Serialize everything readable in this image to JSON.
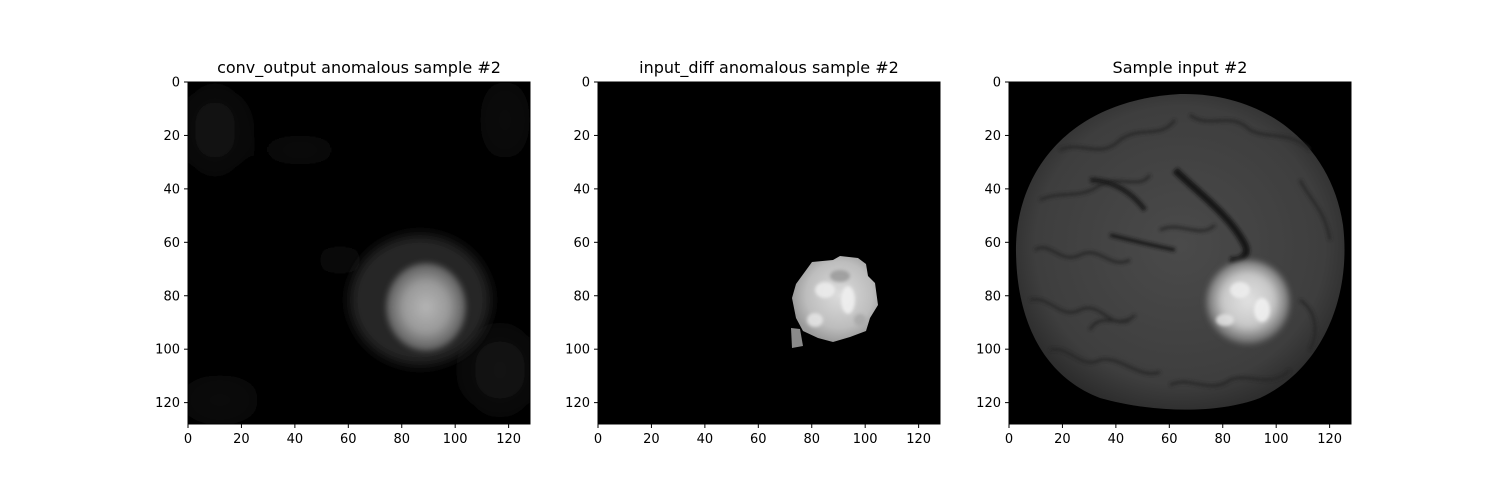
{
  "chart_data": [
    {
      "type": "heatmap",
      "title": "conv_output anomalous sample #2",
      "colormap": "gray",
      "xlim": [
        0,
        128
      ],
      "ylim": [
        128,
        0
      ],
      "xticks": [
        0,
        20,
        40,
        60,
        80,
        100,
        120
      ],
      "yticks": [
        0,
        20,
        40,
        60,
        80,
        100,
        120
      ],
      "content": "smooth bright blob centered near (x 88, y 85) on a dark background"
    },
    {
      "type": "heatmap",
      "title": "input_diff anomalous sample #2",
      "colormap": "gray",
      "xlim": [
        0,
        128
      ],
      "ylim": [
        128,
        0
      ],
      "xticks": [
        0,
        20,
        40,
        60,
        80,
        100,
        120
      ],
      "yticks": [
        0,
        20,
        40,
        60,
        80,
        100,
        120
      ],
      "content": "pixelated bright region centered near (x 87, y 82) with a small fragment near (x 76, y 98) on a black background"
    },
    {
      "type": "heatmap",
      "title": "Sample input #2",
      "colormap": "gray",
      "xlim": [
        0,
        128
      ],
      "ylim": [
        128,
        0
      ],
      "xticks": [
        0,
        20,
        40,
        60,
        80,
        100,
        120
      ],
      "yticks": [
        0,
        20,
        40,
        60,
        80,
        100,
        120
      ],
      "content": "axial brain MRI slice with a bright lesion near (x 88, y 83)"
    }
  ]
}
